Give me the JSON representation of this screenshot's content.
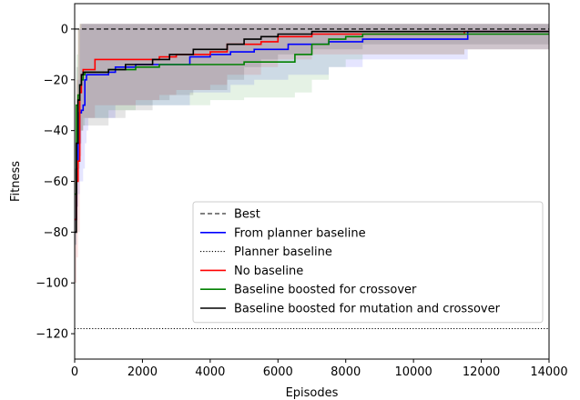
{
  "chart_data": {
    "type": "line",
    "xlabel": "Episodes",
    "ylabel": "Fitness",
    "xlim": [
      0,
      14000
    ],
    "ylim": [
      -130,
      10
    ],
    "xticks": [
      0,
      2000,
      4000,
      6000,
      8000,
      10000,
      12000,
      14000
    ],
    "xtick_labels": [
      "0",
      "2000",
      "4000",
      "6000",
      "8000",
      "10000",
      "12000",
      "14000"
    ],
    "yticks": [
      0,
      -20,
      -40,
      -60,
      -80,
      -100,
      -120
    ],
    "ytick_labels": [
      "0",
      "−20",
      "−40",
      "−60",
      "−80",
      "−100",
      "−120"
    ],
    "grid": false,
    "legend_position": "lower-right",
    "series": [
      {
        "name": "Best",
        "color": "#000000",
        "style": "dashed",
        "x": [
          0,
          14000
        ],
        "y": [
          0,
          0
        ]
      },
      {
        "name": "From planner baseline",
        "color": "#0000ff",
        "style": "solid",
        "band": true,
        "x": [
          0,
          50,
          100,
          150,
          200,
          250,
          300,
          350,
          400,
          1000,
          1200,
          1800,
          2600,
          3400,
          4000,
          4600,
          5300,
          6300,
          7500,
          8200,
          8500,
          10800,
          11600,
          14000
        ],
        "y": [
          -75,
          -55,
          -45,
          -33,
          -32,
          -30,
          -20,
          -18,
          -18,
          -17,
          -15,
          -14,
          -14,
          -11,
          -10,
          -9,
          -8,
          -6,
          -5,
          -5,
          -4,
          -4,
          -1,
          -1
        ],
        "upper": [
          -65,
          -40,
          -20,
          0,
          2,
          2,
          2,
          2,
          2,
          2,
          2,
          2,
          2,
          2,
          2,
          2,
          2,
          2,
          2,
          2,
          2,
          2,
          2,
          2
        ],
        "lower": [
          -85,
          -70,
          -65,
          -60,
          -60,
          -55,
          -45,
          -40,
          -35,
          -35,
          -30,
          -30,
          -30,
          -25,
          -25,
          -22,
          -20,
          -18,
          -15,
          -15,
          -12,
          -12,
          -8,
          -8
        ]
      },
      {
        "name": "Planner baseline",
        "color": "#000000",
        "style": "dotted",
        "x": [
          0,
          14000
        ],
        "y": [
          -118,
          -118
        ]
      },
      {
        "name": "No baseline",
        "color": "#ff0000",
        "style": "solid",
        "band": true,
        "x": [
          0,
          50,
          100,
          150,
          200,
          250,
          300,
          600,
          1000,
          1800,
          2500,
          3000,
          4000,
          4500,
          5500,
          6000,
          7000,
          11500,
          14000
        ],
        "y": [
          -75,
          -60,
          -52,
          -25,
          -18,
          -16,
          -16,
          -12,
          -12,
          -12,
          -11,
          -10,
          -9,
          -6,
          -5,
          -3,
          -2,
          -1,
          -1
        ],
        "upper": [
          -55,
          -20,
          0,
          2,
          2,
          2,
          2,
          2,
          2,
          2,
          2,
          2,
          2,
          2,
          2,
          2,
          2,
          2,
          2
        ],
        "lower": [
          -100,
          -90,
          -80,
          -50,
          -40,
          -35,
          -35,
          -30,
          -30,
          -28,
          -26,
          -24,
          -22,
          -18,
          -15,
          -12,
          -10,
          -8,
          -8
        ]
      },
      {
        "name": "Baseline boosted for crossover",
        "color": "#008000",
        "style": "solid",
        "band": true,
        "x": [
          0,
          50,
          100,
          150,
          200,
          250,
          300,
          1000,
          1800,
          2500,
          4000,
          5000,
          6500,
          7000,
          7500,
          8000,
          8500,
          11500,
          14000
        ],
        "y": [
          -65,
          -30,
          -26,
          -22,
          -20,
          -18,
          -17,
          -16,
          -15,
          -14,
          -14,
          -13,
          -10,
          -6,
          -4,
          -3,
          -2,
          -2,
          -2
        ],
        "upper": [
          -45,
          -10,
          0,
          2,
          2,
          2,
          2,
          2,
          2,
          2,
          2,
          2,
          2,
          2,
          2,
          2,
          2,
          2,
          2
        ],
        "lower": [
          -85,
          -50,
          -45,
          -40,
          -40,
          -38,
          -35,
          -32,
          -30,
          -30,
          -28,
          -27,
          -25,
          -20,
          -15,
          -12,
          -10,
          -8,
          -8
        ]
      },
      {
        "name": "Baseline boosted for mutation and crossover",
        "color": "#000000",
        "style": "solid",
        "band": true,
        "x": [
          0,
          50,
          100,
          150,
          200,
          250,
          1000,
          1500,
          2300,
          2800,
          3500,
          4500,
          5000,
          5500,
          6000,
          7000,
          8500,
          14000
        ],
        "y": [
          -80,
          -45,
          -28,
          -22,
          -18,
          -17,
          -16,
          -14,
          -12,
          -10,
          -8,
          -6,
          -4,
          -3,
          -2,
          -1,
          -1,
          -1
        ],
        "upper": [
          -55,
          -15,
          0,
          2,
          2,
          2,
          2,
          2,
          2,
          2,
          2,
          2,
          2,
          2,
          2,
          2,
          2,
          2
        ],
        "lower": [
          -100,
          -70,
          -55,
          -45,
          -40,
          -38,
          -35,
          -32,
          -28,
          -26,
          -24,
          -20,
          -15,
          -12,
          -10,
          -8,
          -6,
          -6
        ]
      }
    ]
  }
}
